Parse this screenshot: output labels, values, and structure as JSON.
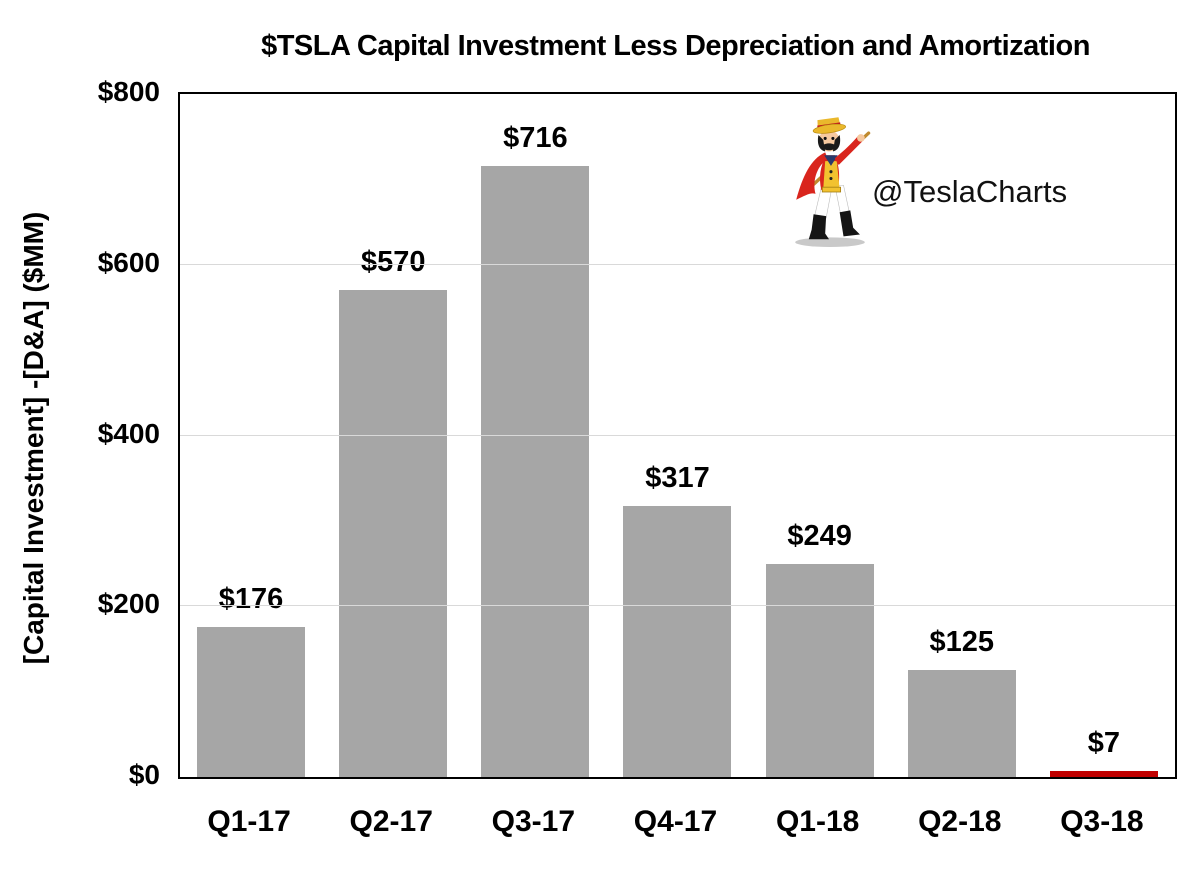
{
  "title": "$TSLA Capital Investment Less Depreciation and Amortization",
  "watermark": "@TeslaCharts",
  "chart_data": {
    "type": "bar",
    "title": "$TSLA Capital Investment Less Depreciation and Amortization",
    "categories": [
      "Q1-17",
      "Q2-17",
      "Q3-17",
      "Q4-17",
      "Q1-18",
      "Q2-18",
      "Q3-18"
    ],
    "values": [
      176,
      570,
      716,
      317,
      249,
      125,
      7
    ],
    "value_labels": [
      "$176",
      "$570",
      "$716",
      "$317",
      "$249",
      "$125",
      "$7"
    ],
    "bar_colors": [
      "#a6a6a6",
      "#a6a6a6",
      "#a6a6a6",
      "#a6a6a6",
      "#a6a6a6",
      "#a6a6a6",
      "#c00000"
    ],
    "xlabel": "",
    "ylabel": "[Capital Investment] -[D&A] ($MM)",
    "ylim": [
      0,
      800
    ],
    "yticks": [
      0,
      200,
      400,
      600,
      800
    ],
    "ytick_labels": [
      "$0",
      "$200",
      "$400",
      "$600",
      "$800"
    ],
    "gridline_values": [
      200,
      400,
      600
    ],
    "grid": true,
    "legend": "none"
  },
  "colors": {
    "bar_gray": "#a6a6a6",
    "bar_red": "#c00000",
    "gridline": "#d9d9d9",
    "axis_frame": "#000000",
    "text": "#000000"
  }
}
